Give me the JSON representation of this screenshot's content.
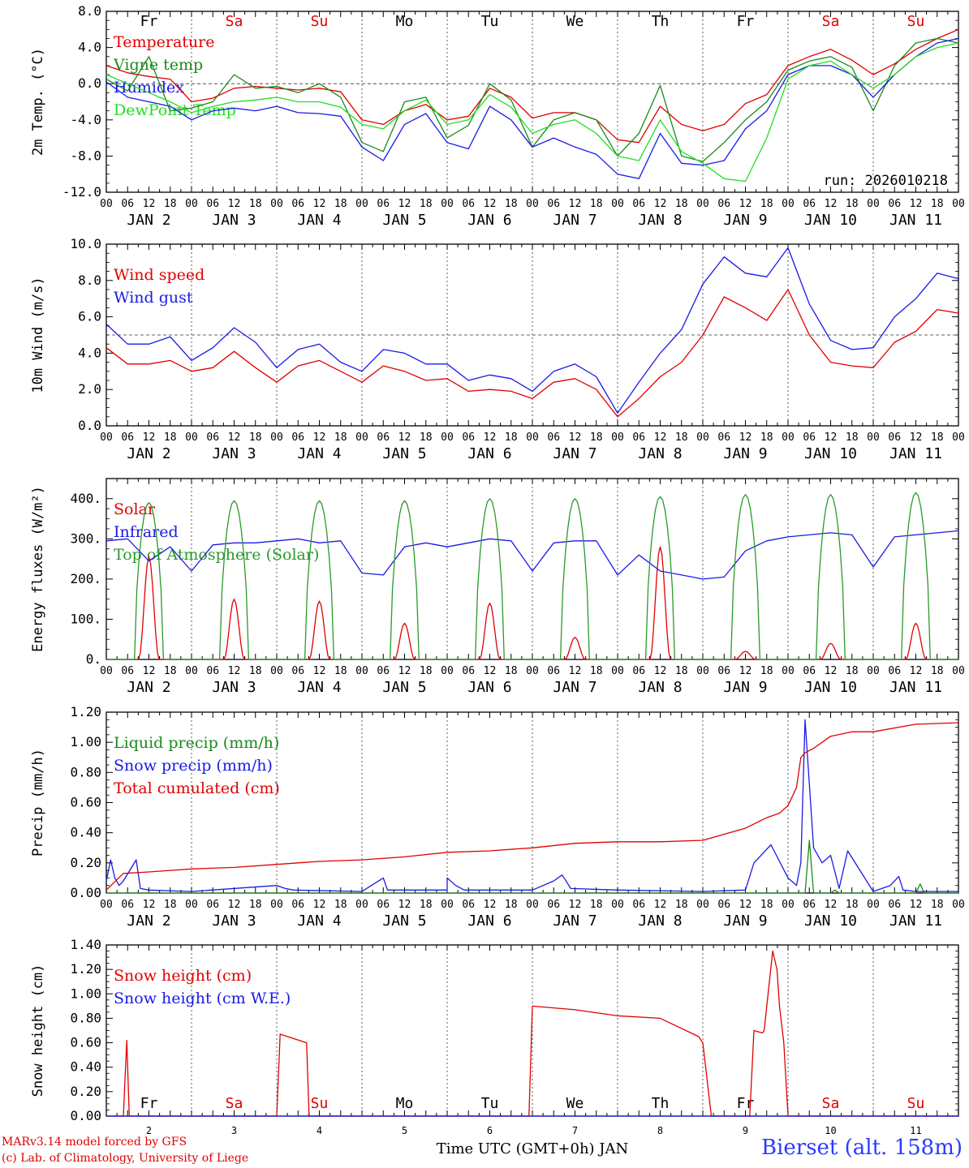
{
  "colors": {
    "red": "#e00000",
    "green": "#1a8a1a",
    "blue": "#1a1ae6",
    "lightgreen": "#22dd22",
    "axis": "#000000",
    "toa": "#2a9a2a"
  },
  "day_labels": [
    "Fr",
    "Sa",
    "Su",
    "Mo",
    "Tu",
    "We",
    "Th",
    "Fr",
    "Sa",
    "Su"
  ],
  "weekend_days": [
    "Sa",
    "Su"
  ],
  "date_labels": [
    "JAN  2",
    "JAN  3",
    "JAN  4",
    "JAN  5",
    "JAN  6",
    "JAN  7",
    "JAN  8",
    "JAN  9",
    "JAN 10",
    "JAN 11"
  ],
  "hour_ticks": [
    "00",
    "06",
    "12",
    "18"
  ],
  "last_hour_tick": "00",
  "bottom_day_numbers": [
    "2",
    "3",
    "4",
    "5",
    "6",
    "7",
    "8",
    "9",
    "10",
    "11"
  ],
  "x_title": "Time UTC (GMT+0h) JAN",
  "run_label": "run: 2026010218",
  "footer": {
    "line1": "MARv3.14 model forced by GFS",
    "line2": "(c) Lab. of Climatology, University of Liege",
    "station": "Bierset (alt. 158m)"
  },
  "chart_data": [
    {
      "type": "line",
      "id": "temp",
      "ylabel": "2m Temp. (°C)",
      "ylim": [
        -12,
        8
      ],
      "yticks": [
        "-12.0",
        "-8.0",
        "-4.0",
        "0.0",
        "4.0",
        "8.0"
      ],
      "refline": 0,
      "show_day_labels": true,
      "x_days": [
        0,
        0.25,
        0.5,
        0.75,
        1,
        1.25,
        1.5,
        1.75,
        2,
        2.25,
        2.5,
        2.75,
        3,
        3.25,
        3.5,
        3.75,
        4,
        4.25,
        4.5,
        4.75,
        5,
        5.25,
        5.5,
        5.75,
        6,
        6.25,
        6.5,
        6.75,
        7,
        7.25,
        7.5,
        7.75,
        8,
        8.25,
        8.5,
        8.75,
        9,
        9.25,
        9.5,
        9.75,
        10
      ],
      "series": [
        {
          "name": "Temperature",
          "color": "red",
          "values": [
            2.0,
            1.2,
            0.8,
            0.5,
            -2.0,
            -1.6,
            -0.5,
            -0.3,
            -0.5,
            -0.7,
            -0.5,
            -0.9,
            -4.0,
            -4.5,
            -3.0,
            -2.3,
            -4.0,
            -3.6,
            -0.5,
            -1.5,
            -3.8,
            -3.2,
            -3.2,
            -4.0,
            -6.2,
            -6.5,
            -2.5,
            -4.5,
            -5.2,
            -4.5,
            -2.2,
            -1.2,
            2.0,
            3.0,
            3.8,
            2.6,
            1.0,
            2.2,
            3.8,
            5.0,
            6.0
          ]
        },
        {
          "name": "Vigne temp",
          "color": "green",
          "values": [
            0.5,
            -0.8,
            3.0,
            -3.0,
            -2.7,
            -2.0,
            1.0,
            -0.5,
            -0.3,
            -1.0,
            0.0,
            -1.5,
            -6.5,
            -7.5,
            -2.0,
            -1.5,
            -6.0,
            -4.6,
            0.0,
            -1.8,
            -7.0,
            -4.0,
            -3.2,
            -4.0,
            -8.0,
            -5.5,
            -0.2,
            -8.0,
            -8.6,
            -6.5,
            -4.0,
            -2.0,
            1.5,
            2.5,
            3.0,
            1.8,
            -3.0,
            2.0,
            4.5,
            5.0,
            4.5
          ]
        },
        {
          "name": "Humidex",
          "color": "blue",
          "values": [
            0.2,
            -1.5,
            -2.0,
            -2.5,
            -4.0,
            -3.0,
            -2.7,
            -3.0,
            -2.5,
            -3.2,
            -3.3,
            -3.6,
            -7.0,
            -8.5,
            -4.5,
            -3.3,
            -6.5,
            -7.2,
            -2.5,
            -4.0,
            -7.0,
            -6.0,
            -7.0,
            -7.8,
            -10.0,
            -10.5,
            -5.5,
            -8.8,
            -9.0,
            -8.5,
            -5.0,
            -3.0,
            1.0,
            2.0,
            2.0,
            1.0,
            -1.5,
            1.0,
            3.0,
            4.5,
            5.0
          ]
        },
        {
          "name": "DewPoint Temp",
          "color": "lightgreen",
          "values": [
            1.0,
            0.0,
            -1.0,
            -2.0,
            -3.2,
            -2.5,
            -2.0,
            -1.8,
            -1.5,
            -2.0,
            -2.0,
            -2.6,
            -4.5,
            -5.0,
            -3.0,
            -1.8,
            -4.5,
            -4.0,
            -1.2,
            -2.6,
            -5.5,
            -4.5,
            -4.0,
            -5.5,
            -8.0,
            -8.5,
            -4.0,
            -7.5,
            -8.8,
            -10.5,
            -10.8,
            -6.0,
            0.5,
            2.0,
            2.5,
            1.0,
            -0.5,
            1.0,
            3.0,
            4.0,
            4.5
          ]
        }
      ]
    },
    {
      "type": "line",
      "id": "wind",
      "ylabel": "10m Wind (m/s)",
      "ylim": [
        0,
        10
      ],
      "yticks": [
        "0.0",
        "2.0",
        "4.0",
        "6.0",
        "8.0",
        "10.0"
      ],
      "refline": 5,
      "x_days": [
        0,
        0.25,
        0.5,
        0.75,
        1,
        1.25,
        1.5,
        1.75,
        2,
        2.25,
        2.5,
        2.75,
        3,
        3.25,
        3.5,
        3.75,
        4,
        4.25,
        4.5,
        4.75,
        5,
        5.25,
        5.5,
        5.75,
        6,
        6.25,
        6.5,
        6.75,
        7,
        7.25,
        7.5,
        7.75,
        8,
        8.25,
        8.5,
        8.75,
        9,
        9.25,
        9.5,
        9.75,
        10
      ],
      "series": [
        {
          "name": "Wind speed",
          "color": "red",
          "values": [
            4.3,
            3.4,
            3.4,
            3.6,
            3.0,
            3.2,
            4.1,
            3.2,
            2.4,
            3.3,
            3.6,
            3.0,
            2.4,
            3.3,
            3.0,
            2.5,
            2.6,
            1.9,
            2.0,
            1.9,
            1.5,
            2.4,
            2.6,
            2.0,
            0.5,
            1.5,
            2.7,
            3.5,
            5.0,
            7.1,
            6.5,
            5.8,
            7.5,
            5.0,
            3.5,
            3.3,
            3.2,
            4.6,
            5.2,
            6.4,
            6.2
          ]
        },
        {
          "name": "Wind gust",
          "color": "blue",
          "values": [
            5.6,
            4.5,
            4.5,
            4.9,
            3.6,
            4.3,
            5.4,
            4.6,
            3.2,
            4.2,
            4.5,
            3.5,
            3.0,
            4.2,
            4.0,
            3.4,
            3.4,
            2.5,
            2.8,
            2.6,
            1.9,
            3.0,
            3.4,
            2.7,
            0.7,
            2.4,
            4.0,
            5.3,
            7.8,
            9.3,
            8.4,
            8.2,
            9.8,
            6.7,
            4.7,
            4.2,
            4.3,
            6.0,
            7.0,
            8.4,
            8.1
          ]
        }
      ]
    },
    {
      "type": "line",
      "id": "energy",
      "ylabel": "Energy fluxes (W/m²)",
      "ylim": [
        0,
        450
      ],
      "yticks": [
        "0.",
        "100.",
        "200.",
        "300.",
        "400."
      ],
      "x_days": [
        0,
        0.08,
        0.17,
        0.25,
        0.33,
        0.42,
        0.5,
        0.58,
        0.67,
        0.75,
        0.83,
        0.92,
        1
      ],
      "series": [
        {
          "name": "Solar",
          "color": "red",
          "daily_peaks": [
            255,
            150,
            145,
            90,
            140,
            55,
            280,
            20,
            40,
            90
          ]
        },
        {
          "name": "Infrared",
          "color": "blue",
          "x_days": [
            0,
            0.25,
            0.5,
            0.75,
            1,
            1.25,
            1.5,
            1.75,
            2,
            2.25,
            2.5,
            2.75,
            3,
            3.25,
            3.5,
            3.75,
            4,
            4.25,
            4.5,
            4.75,
            5,
            5.25,
            5.5,
            5.75,
            6,
            6.25,
            6.5,
            6.75,
            7,
            7.25,
            7.5,
            7.75,
            8,
            8.25,
            8.5,
            8.75,
            9,
            9.25,
            9.5,
            9.75,
            10
          ],
          "values": [
            295,
            300,
            245,
            280,
            220,
            285,
            290,
            290,
            295,
            300,
            290,
            295,
            215,
            210,
            280,
            290,
            280,
            290,
            300,
            295,
            220,
            290,
            295,
            295,
            210,
            260,
            220,
            210,
            200,
            205,
            270,
            295,
            305,
            310,
            315,
            310,
            230,
            305,
            310,
            315,
            320
          ]
        },
        {
          "name": "Top of Atmosphere (Solar)",
          "color": "toa",
          "daily_peaks": [
            390,
            395,
            395,
            395,
            400,
            400,
            405,
            410,
            410,
            415
          ]
        }
      ]
    },
    {
      "type": "line",
      "id": "precip",
      "ylabel": "Precip (mm/h)",
      "ylim": [
        0,
        1.2
      ],
      "yticks": [
        "0.00",
        "0.20",
        "0.40",
        "0.60",
        "0.80",
        "1.00",
        "1.20"
      ],
      "series": [
        {
          "name": "Liquid precip (mm/h)",
          "color": "green",
          "x_days": [
            0,
            8.0,
            8.2,
            8.25,
            8.3,
            8.5,
            8.55,
            8.6,
            8.7,
            9.0,
            9.5,
            9.55,
            9.6,
            10
          ],
          "values": [
            0,
            0,
            0,
            0.35,
            0,
            0,
            0.02,
            0,
            0,
            0,
            0,
            0.06,
            0,
            0
          ]
        },
        {
          "name": "Snow precip (mm/h)",
          "color": "blue",
          "x_days": [
            0,
            0.05,
            0.1,
            0.15,
            0.2,
            0.35,
            0.4,
            0.5,
            1,
            2,
            2.1,
            2.2,
            3,
            3.25,
            3.3,
            4,
            4.0,
            4.1,
            4.2,
            5,
            5.25,
            5.35,
            5.45,
            6,
            7,
            7.5,
            7.6,
            7.8,
            8.0,
            8.1,
            8.15,
            8.2,
            8.3,
            8.4,
            8.5,
            8.6,
            8.7,
            9.0,
            9.2,
            9.3,
            9.35,
            9.5,
            10
          ],
          "values": [
            0.08,
            0.22,
            0.1,
            0.05,
            0.08,
            0.22,
            0.03,
            0.02,
            0.01,
            0.05,
            0.03,
            0.02,
            0.01,
            0.1,
            0.02,
            0.02,
            0.1,
            0.05,
            0.02,
            0.02,
            0.08,
            0.12,
            0.03,
            0.02,
            0.01,
            0.02,
            0.2,
            0.32,
            0.1,
            0.05,
            0.2,
            1.15,
            0.3,
            0.2,
            0.25,
            0.03,
            0.28,
            0.01,
            0.05,
            0.11,
            0.02,
            0.01,
            0.01
          ]
        },
        {
          "name": "Total cumulated (cm)",
          "color": "red",
          "x_days": [
            0,
            0.2,
            0.5,
            0.75,
            1,
            1.5,
            2,
            2.5,
            3,
            3.5,
            4,
            4.5,
            5,
            5.5,
            6,
            6.5,
            7,
            7.5,
            7.75,
            7.9,
            8.0,
            8.1,
            8.15,
            8.2,
            8.3,
            8.5,
            8.75,
            9,
            9.5,
            10
          ],
          "values": [
            0.02,
            0.13,
            0.14,
            0.15,
            0.16,
            0.17,
            0.19,
            0.21,
            0.22,
            0.24,
            0.27,
            0.28,
            0.3,
            0.33,
            0.34,
            0.34,
            0.35,
            0.43,
            0.5,
            0.53,
            0.58,
            0.7,
            0.9,
            0.93,
            0.96,
            1.04,
            1.07,
            1.07,
            1.12,
            1.13
          ]
        }
      ]
    },
    {
      "type": "line",
      "id": "snow",
      "ylabel": "Snow height (cm)",
      "ylim": [
        0,
        1.4
      ],
      "yticks": [
        "0.00",
        "0.20",
        "0.40",
        "0.60",
        "0.80",
        "1.00",
        "1.20",
        "1.40"
      ],
      "show_bottom_days": true,
      "series": [
        {
          "name": "Snow height (cm)",
          "color": "red",
          "x_days": [
            0,
            0.2,
            0.24,
            0.27,
            0.3,
            2.0,
            2.04,
            2.35,
            2.38,
            2.42,
            4.96,
            5.0,
            5.5,
            6.0,
            6.5,
            6.95,
            7.0,
            7.1,
            7.55,
            7.6,
            7.7,
            7.72,
            7.82,
            7.87,
            7.9,
            7.95,
            8.0,
            10
          ],
          "values": [
            0,
            0,
            0.62,
            0,
            0,
            0,
            0.67,
            0.6,
            0,
            0,
            0,
            0.9,
            0.87,
            0.82,
            0.8,
            0.65,
            0.6,
            0,
            0,
            0.7,
            0.68,
            0.7,
            1.35,
            1.2,
            0.9,
            0.6,
            0,
            0
          ]
        },
        {
          "name": "Snow height (cm W.E.)",
          "color": "blue",
          "x_days": [
            0,
            10
          ],
          "values": [
            0,
            0
          ]
        }
      ]
    }
  ]
}
